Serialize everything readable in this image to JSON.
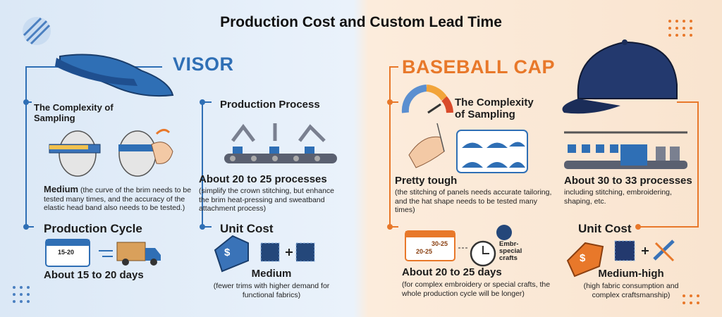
{
  "header": {
    "title": "Production Cost and Custom Lead Time"
  },
  "visor": {
    "name": "VISOR",
    "sampling": {
      "title": "The Complexity of Sampling",
      "level": "Medium",
      "note": "(the curve of the brim needs to be tested many times, and the accuracy of the elastic head band also needs to be tested.)"
    },
    "process": {
      "title": "Production Process",
      "summary": "About 20 to 25 processes",
      "note": "(simplify the crown stitching, but enhance the brim heat-pressing and sweatband attachment process)"
    },
    "cycle": {
      "title": "Production Cycle",
      "calendar_label": "15-20",
      "summary": "About 15 to 20 days"
    },
    "unit_cost": {
      "title": "Unit Cost",
      "tag_symbol": "$",
      "level": "Medium",
      "note": "(fewer trims with higher demand for functional fabrics)"
    }
  },
  "baseball_cap": {
    "name": "BASEBALL CAP",
    "sampling": {
      "title": "The Complexity of Sampling",
      "level": "Pretty tough",
      "note": "(the stitching of panels needs accurate tailoring, and the hat shape needs to be tested many times)"
    },
    "process": {
      "summary": "About 30 to 33 processes",
      "note": "including stitching, embroidering, shaping, etc."
    },
    "cycle": {
      "calendar_labels": [
        "30-25",
        "20-25"
      ],
      "badge": "Embr-special crafts",
      "summary": "About 20 to 25 days",
      "note": "(for complex embroidery or special crafts, the whole production cycle will be longer)"
    },
    "unit_cost": {
      "title": "Unit Cost",
      "tag_symbol": "$",
      "level": "Medium-high",
      "note": "(high fabric consumption and complex craftsmanship)"
    }
  }
}
